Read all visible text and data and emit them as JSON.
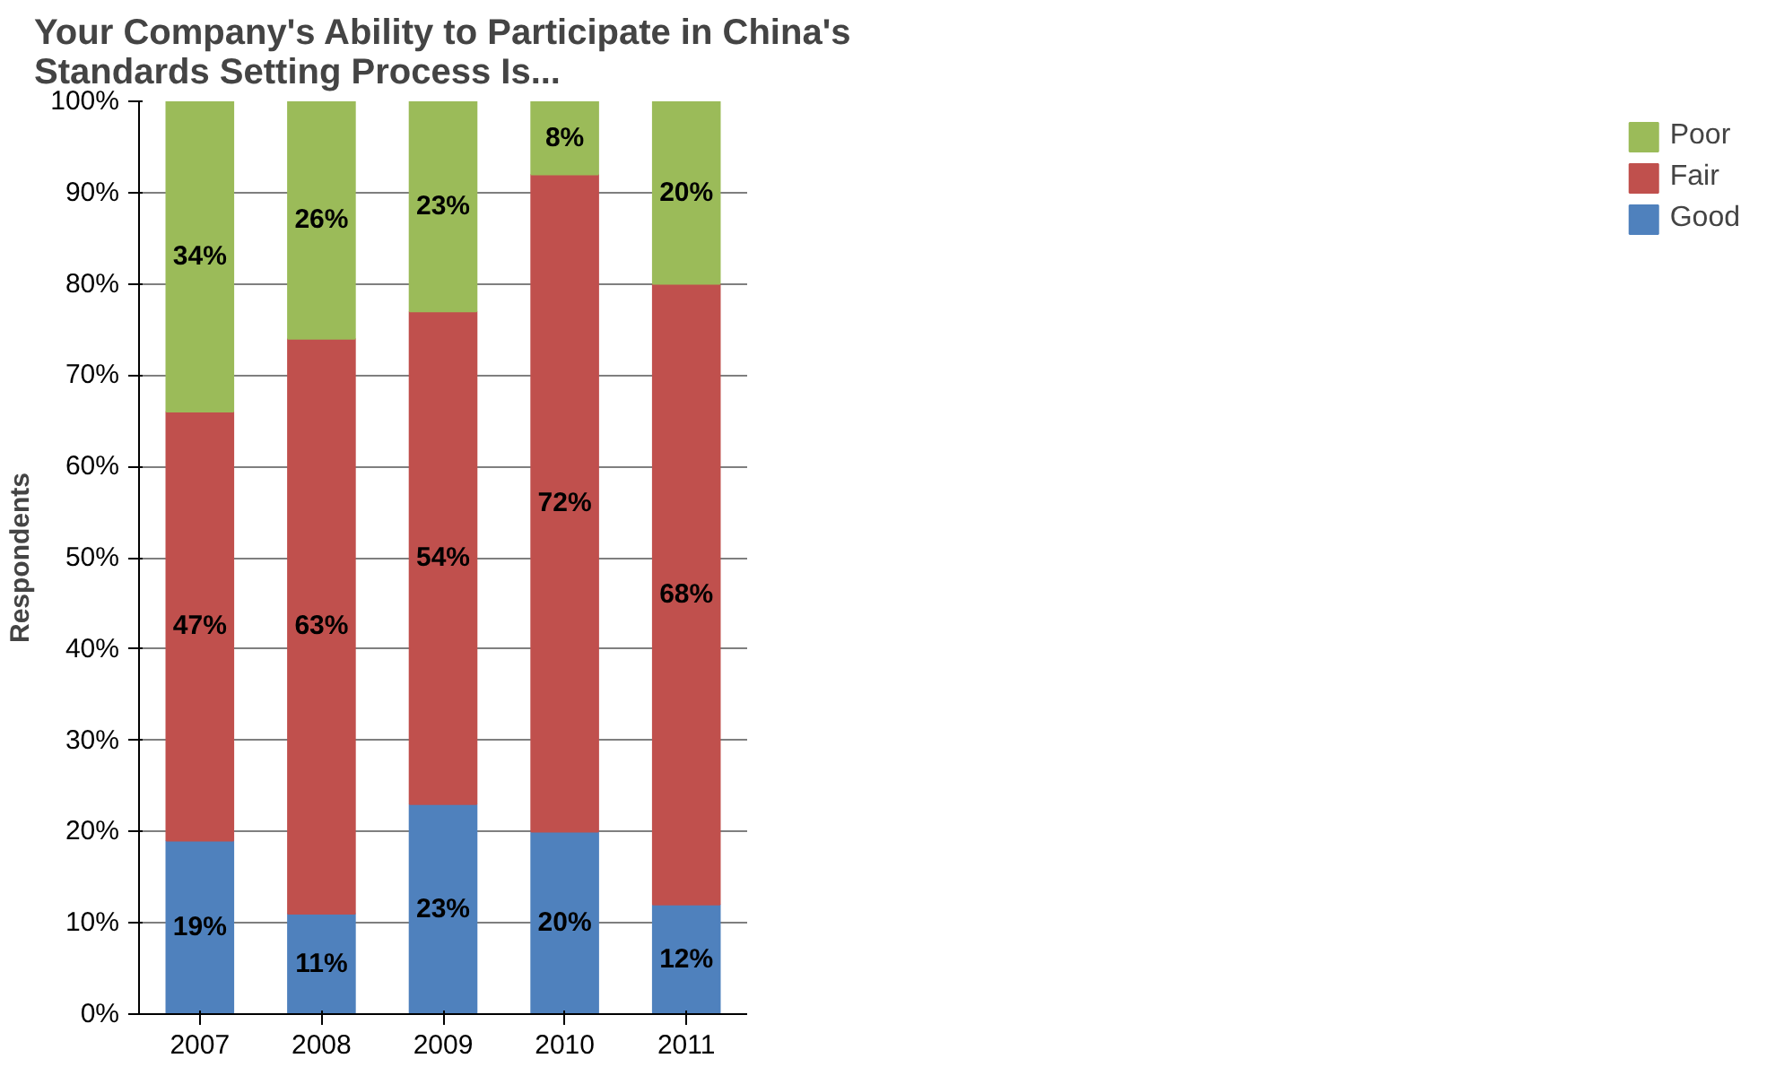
{
  "chart_data": {
    "type": "bar",
    "stacked": true,
    "title": "Your Company's Ability to Participate in China's\nStandards Setting Process Is...",
    "ylabel": "Respondents",
    "categories": [
      "2007",
      "2008",
      "2009",
      "2010",
      "2011"
    ],
    "series": [
      {
        "name": "Good",
        "color": "#4f81bd",
        "values": [
          19,
          11,
          23,
          20,
          12
        ],
        "value_labels": [
          "19%",
          "11%",
          "23%",
          "20%",
          "12%"
        ]
      },
      {
        "name": "Fair",
        "color": "#c0504d",
        "values": [
          47,
          63,
          54,
          72,
          68
        ],
        "value_labels": [
          "47%",
          "63%",
          "54%",
          "72%",
          "68%"
        ]
      },
      {
        "name": "Poor",
        "color": "#9bbb59",
        "values": [
          34,
          26,
          23,
          8,
          20
        ],
        "value_labels": [
          "34%",
          "26%",
          "23%",
          "8%",
          "20%"
        ]
      }
    ],
    "ylim": [
      0,
      100
    ],
    "yticks": [
      {
        "value": 0,
        "label": "0%"
      },
      {
        "value": 10,
        "label": "10%"
      },
      {
        "value": 20,
        "label": "20%"
      },
      {
        "value": 30,
        "label": "30%"
      },
      {
        "value": 40,
        "label": "40%"
      },
      {
        "value": 50,
        "label": "50%"
      },
      {
        "value": 60,
        "label": "60%"
      },
      {
        "value": 70,
        "label": "70%"
      },
      {
        "value": 80,
        "label": "80%"
      },
      {
        "value": 90,
        "label": "90%"
      },
      {
        "value": 100,
        "label": "100%"
      }
    ],
    "grid": "y",
    "legend": "right"
  }
}
